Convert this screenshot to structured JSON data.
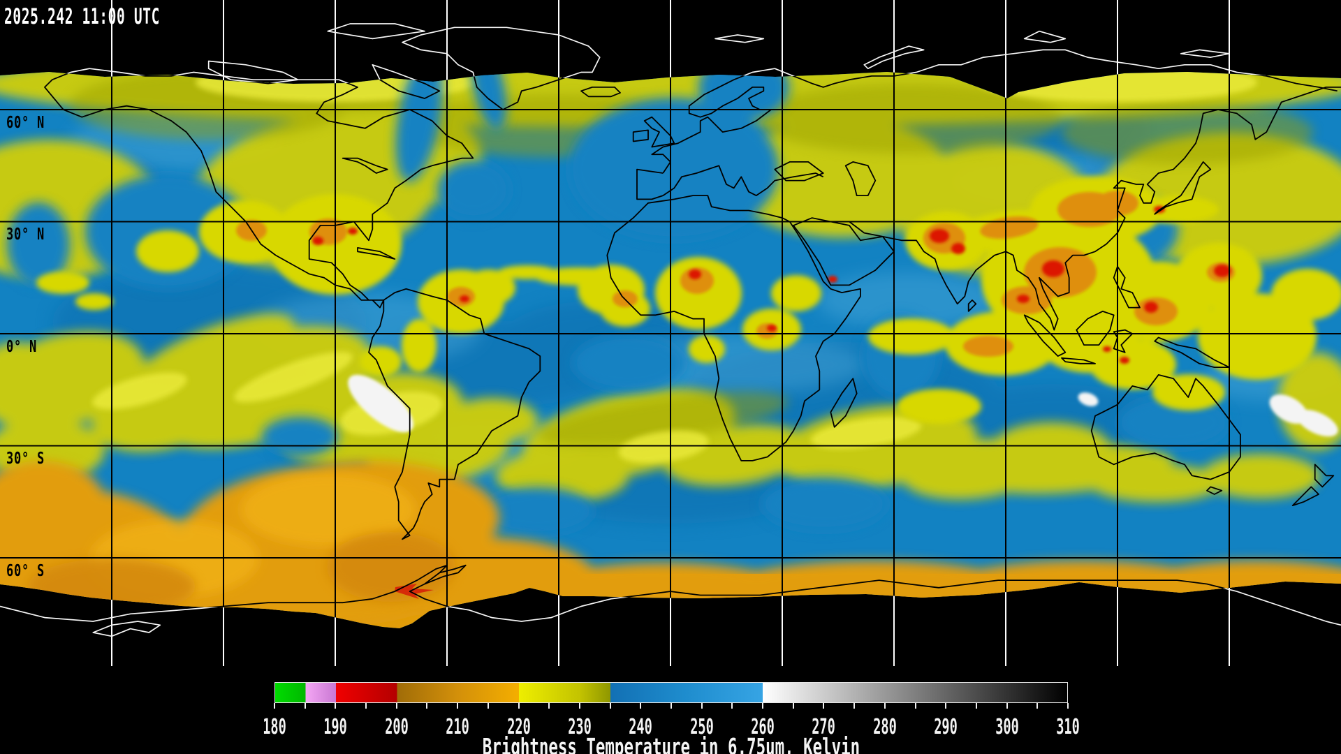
{
  "header": {
    "timestamp": "2025.242 11:00 UTC"
  },
  "map": {
    "latitude_labels": [
      "60° N",
      "30° N",
      "0° N",
      "30° S",
      "60° S"
    ],
    "grid": {
      "lat_spacing_deg": 30,
      "lon_spacing_deg": 30
    },
    "palette_note_colors": {
      "cold_cloud_red": "#dc1606",
      "cloud_orange": "#df8f08",
      "cloud_yellow": "#cdcd07",
      "midlevel_blue": "#1282c2",
      "warm_dry_white": "#f4f4f4",
      "background": "#000000",
      "coastline_on_data": "#000000",
      "coastline_on_void": "#f8f8f8"
    }
  },
  "colorbar": {
    "title": "Brightness Temperature in 6.75um, Kelvin",
    "min": 180,
    "max": 310,
    "minor_tick_step": 5,
    "major_tick_labels": [
      "180",
      "190",
      "200",
      "210",
      "220",
      "230",
      "240",
      "250",
      "260",
      "270",
      "280",
      "290",
      "300",
      "310"
    ],
    "gradient_stops": [
      {
        "v": 180,
        "c": "#00dc00"
      },
      {
        "v": 185,
        "c": "#00b800"
      },
      {
        "v": 185,
        "c": "#f4a6f4"
      },
      {
        "v": 190,
        "c": "#c878d2"
      },
      {
        "v": 190,
        "c": "#f00000"
      },
      {
        "v": 200,
        "c": "#b40000"
      },
      {
        "v": 200,
        "c": "#a06c08"
      },
      {
        "v": 210,
        "c": "#d3900a"
      },
      {
        "v": 220,
        "c": "#f4ae00"
      },
      {
        "v": 220,
        "c": "#eeee00"
      },
      {
        "v": 230,
        "c": "#c3c300"
      },
      {
        "v": 235,
        "c": "#8f9700"
      },
      {
        "v": 235,
        "c": "#1270b4"
      },
      {
        "v": 247,
        "c": "#1e8ccd"
      },
      {
        "v": 260,
        "c": "#36a4e4"
      },
      {
        "v": 260,
        "c": "#ffffff"
      },
      {
        "v": 310,
        "c": "#000000"
      }
    ]
  }
}
